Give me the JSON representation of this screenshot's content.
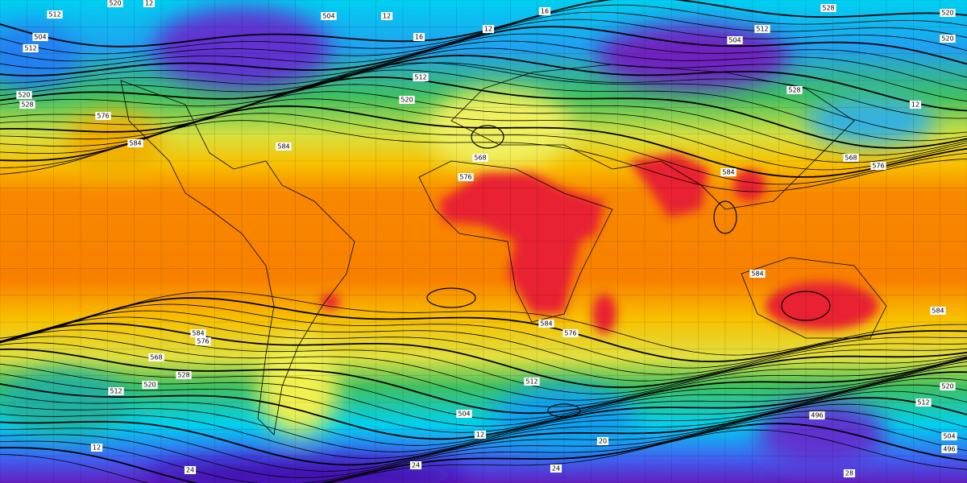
{
  "contour_labels": [
    "512",
    "520",
    "12",
    "504",
    "512",
    "520",
    "528",
    "576",
    "584",
    "504",
    "12",
    "16",
    "12",
    "16",
    "512",
    "520",
    "568",
    "576",
    "584",
    "528",
    "512",
    "504",
    "528",
    "520",
    "520",
    "12",
    "576",
    "568",
    "584",
    "584",
    "584",
    "584",
    "576",
    "568",
    "528",
    "520",
    "512",
    "584",
    "576",
    "512",
    "504",
    "496",
    "520",
    "512",
    "504",
    "496",
    "12",
    "20",
    "24",
    "24",
    "24",
    "12",
    "28"
  ]
}
